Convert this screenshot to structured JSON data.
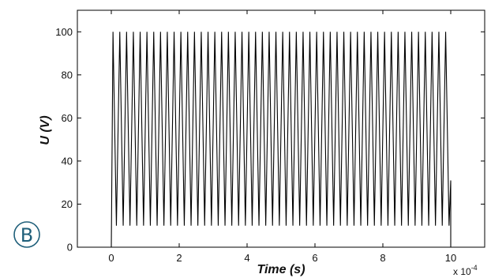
{
  "panel": {
    "label": "B",
    "color": "#1f5f7a"
  },
  "chart_data": {
    "type": "line",
    "title": "",
    "xlabel": "Time (s)",
    "ylabel": "U (V)",
    "x_exponent_label": "x 10",
    "x_exponent_power": "-4",
    "xlim": [
      -1,
      11
    ],
    "ylim": [
      0,
      110
    ],
    "x_ticks": [
      0,
      2,
      4,
      6,
      8,
      10
    ],
    "y_ticks": [
      0,
      20,
      40,
      60,
      80,
      100
    ],
    "grid": false,
    "line_color": "#000000",
    "series": [
      {
        "signal": "triangular oscillation",
        "t_start": 0,
        "t_end": 10,
        "initial_value": 0,
        "peak_value": 100,
        "trough_value": 10,
        "cycles": 50,
        "tail_value": 31,
        "final_value": 0
      }
    ]
  }
}
